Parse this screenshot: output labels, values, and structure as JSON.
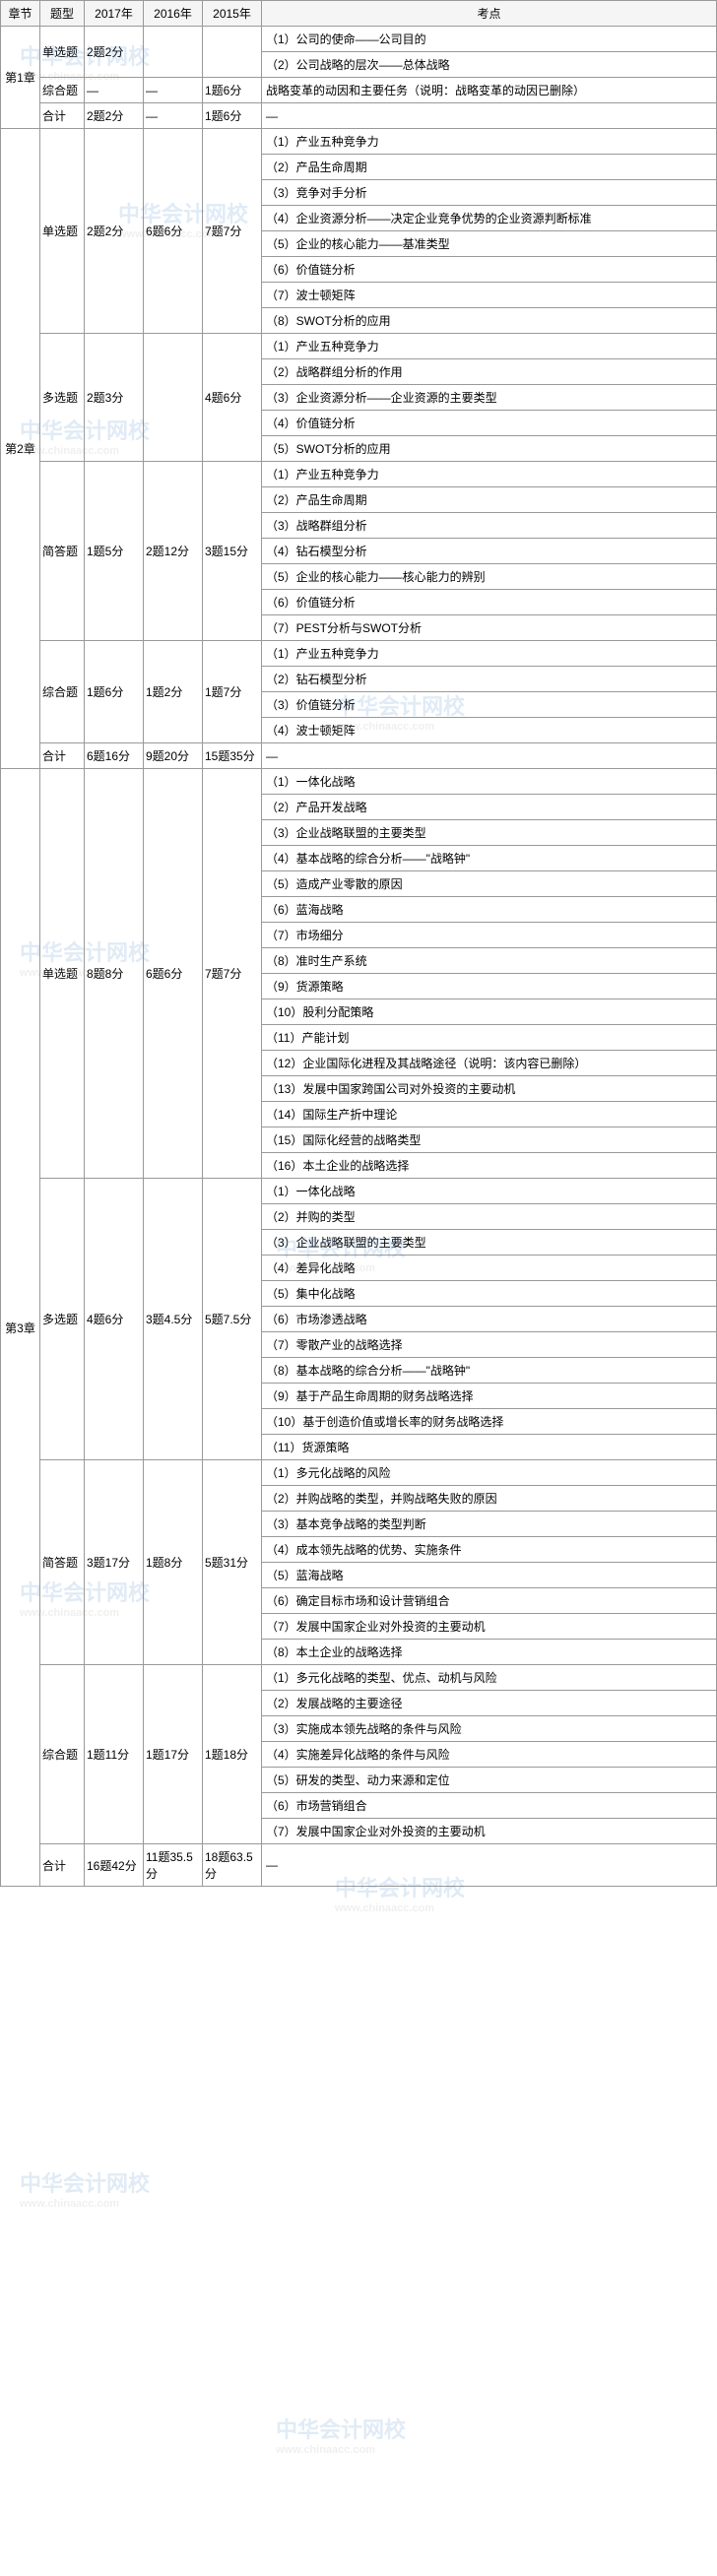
{
  "headers": {
    "section": "章节",
    "type": "题型",
    "y2017": "2017年",
    "y2016": "2016年",
    "y2015": "2015年",
    "topics": "考点"
  },
  "watermark": {
    "text": "中华会计网校",
    "url": "www.chinaacc.com"
  },
  "sections": [
    {
      "label": "第1章",
      "rows": [
        {
          "type": "单选题",
          "typeRowspan": 2,
          "y2017": "2题2分",
          "y2016": "",
          "y2015": "",
          "y2015Rowspan": 2,
          "topic": "（1）公司的使命——公司目的",
          "y2017Rowspan": 2,
          "y2016Rowspan": 2
        },
        {
          "topic": "（2）公司战略的层次——总体战略"
        },
        {
          "type": "综合题",
          "y2017": "—",
          "y2016": "—",
          "y2015": "1题6分",
          "topic": "战略变革的动因和主要任务（说明：战略变革的动因已删除）"
        },
        {
          "type": "合计",
          "y2017": "2题2分",
          "y2016": "—",
          "y2015": "1题6分",
          "topic": "—"
        }
      ]
    },
    {
      "label": "第2章",
      "rows": [
        {
          "type": "单选题",
          "typeRowspan": 8,
          "y2017": "2题2分",
          "y2017Rowspan": 8,
          "y2016": "6题6分",
          "y2016Rowspan": 8,
          "y2015": "7题7分",
          "y2015Rowspan": 8,
          "topic": "（1）产业五种竞争力"
        },
        {
          "topic": "（2）产品生命周期"
        },
        {
          "topic": "（3）竞争对手分析"
        },
        {
          "topic": "（4）企业资源分析——决定企业竞争优势的企业资源判断标准"
        },
        {
          "topic": "（5）企业的核心能力——基准类型"
        },
        {
          "topic": "（6）价值链分析"
        },
        {
          "topic": "（7）波士顿矩阵"
        },
        {
          "topic": "（8）SWOT分析的应用"
        },
        {
          "type": "多选题",
          "typeRowspan": 5,
          "y2017": "2题3分",
          "y2017Rowspan": 5,
          "y2016": "",
          "y2016Rowspan": 5,
          "y2015": "4题6分",
          "y2015Rowspan": 5,
          "topic": "（1）产业五种竞争力"
        },
        {
          "topic": "（2）战略群组分析的作用"
        },
        {
          "topic": "（3）企业资源分析——企业资源的主要类型"
        },
        {
          "topic": "（4）价值链分析"
        },
        {
          "topic": "（5）SWOT分析的应用"
        },
        {
          "type": "简答题",
          "typeRowspan": 7,
          "y2017": "1题5分",
          "y2017Rowspan": 7,
          "y2016": "2题12分",
          "y2016Rowspan": 7,
          "y2015": "3题15分",
          "y2015Rowspan": 7,
          "topic": "（1）产业五种竞争力"
        },
        {
          "topic": "（2）产品生命周期"
        },
        {
          "topic": "（3）战略群组分析"
        },
        {
          "topic": "（4）钻石模型分析"
        },
        {
          "topic": "（5）企业的核心能力——核心能力的辨别"
        },
        {
          "topic": "（6）价值链分析"
        },
        {
          "topic": "（7）PEST分析与SWOT分析"
        },
        {
          "type": "综合题",
          "typeRowspan": 4,
          "y2017": "1题6分",
          "y2017Rowspan": 4,
          "y2016": "1题2分",
          "y2016Rowspan": 4,
          "y2015": "1题7分",
          "y2015Rowspan": 4,
          "topic": "（1）产业五种竞争力"
        },
        {
          "topic": "（2）钻石模型分析"
        },
        {
          "topic": "（3）价值链分析"
        },
        {
          "topic": "（4）波士顿矩阵"
        },
        {
          "type": "合计",
          "y2017": "6题16分",
          "y2016": "9题20分",
          "y2015": "15题35分",
          "topic": "—"
        }
      ]
    },
    {
      "label": "第3章",
      "rows": [
        {
          "type": "单选题",
          "typeRowspan": 16,
          "y2017": "8题8分",
          "y2017Rowspan": 16,
          "y2016": "6题6分",
          "y2016Rowspan": 16,
          "y2015": "7题7分",
          "y2015Rowspan": 16,
          "topic": "（1）一体化战略"
        },
        {
          "topic": "（2）产品开发战略"
        },
        {
          "topic": "（3）企业战略联盟的主要类型"
        },
        {
          "topic": "（4）基本战略的综合分析——\"战略钟\""
        },
        {
          "topic": "（5）造成产业零散的原因"
        },
        {
          "topic": "（6）蓝海战略"
        },
        {
          "topic": "（7）市场细分"
        },
        {
          "topic": "（8）准时生产系统"
        },
        {
          "topic": "（9）货源策略"
        },
        {
          "topic": "（10）股利分配策略"
        },
        {
          "topic": "（11）产能计划"
        },
        {
          "topic": "（12）企业国际化进程及其战略途径（说明：该内容已删除）"
        },
        {
          "topic": "（13）发展中国家跨国公司对外投资的主要动机"
        },
        {
          "topic": "（14）国际生产折中理论"
        },
        {
          "topic": "（15）国际化经营的战略类型"
        },
        {
          "topic": "（16）本土企业的战略选择"
        },
        {
          "type": "多选题",
          "typeRowspan": 11,
          "y2017": "4题6分",
          "y2017Rowspan": 11,
          "y2016": "3题4.5分",
          "y2016Rowspan": 11,
          "y2015": "5题7.5分",
          "y2015Rowspan": 11,
          "topic": "（1）一体化战略"
        },
        {
          "topic": "（2）并购的类型"
        },
        {
          "topic": "（3）企业战略联盟的主要类型"
        },
        {
          "topic": "（4）差异化战略"
        },
        {
          "topic": "（5）集中化战略"
        },
        {
          "topic": "（6）市场渗透战略"
        },
        {
          "topic": "（7）零散产业的战略选择"
        },
        {
          "topic": "（8）基本战略的综合分析——\"战略钟\""
        },
        {
          "topic": "（9）基于产品生命周期的财务战略选择"
        },
        {
          "topic": "（10）基于创造价值或增长率的财务战略选择"
        },
        {
          "topic": "（11）货源策略"
        },
        {
          "type": "简答题",
          "typeRowspan": 8,
          "y2017": "3题17分",
          "y2017Rowspan": 8,
          "y2016": "1题8分",
          "y2016Rowspan": 8,
          "y2015": "5题31分",
          "y2015Rowspan": 8,
          "topic": "（1）多元化战略的风险"
        },
        {
          "topic": "（2）并购战略的类型，并购战略失败的原因"
        },
        {
          "topic": "（3）基本竞争战略的类型判断"
        },
        {
          "topic": "（4）成本领先战略的优势、实施条件"
        },
        {
          "topic": "（5）蓝海战略"
        },
        {
          "topic": "（6）确定目标市场和设计营销组合"
        },
        {
          "topic": "（7）发展中国家企业对外投资的主要动机"
        },
        {
          "topic": "（8）本土企业的战略选择"
        },
        {
          "type": "综合题",
          "typeRowspan": 7,
          "y2017": "1题11分",
          "y2017Rowspan": 7,
          "y2016": "1题17分",
          "y2016Rowspan": 7,
          "y2015": "1题18分",
          "y2015Rowspan": 7,
          "topic": "（1）多元化战略的类型、优点、动机与风险"
        },
        {
          "topic": "（2）发展战略的主要途径"
        },
        {
          "topic": "（3）实施成本领先战略的条件与风险"
        },
        {
          "topic": "（4）实施差异化战略的条件与风险"
        },
        {
          "topic": "（5）研发的类型、动力来源和定位"
        },
        {
          "topic": "（6）市场营销组合"
        },
        {
          "topic": "（7）发展中国家企业对外投资的主要动机"
        },
        {
          "type": "合计",
          "y2017": "16题42分",
          "y2016": "11题35.5分",
          "y2015": "18题63.5分",
          "topic": "—"
        }
      ]
    }
  ]
}
